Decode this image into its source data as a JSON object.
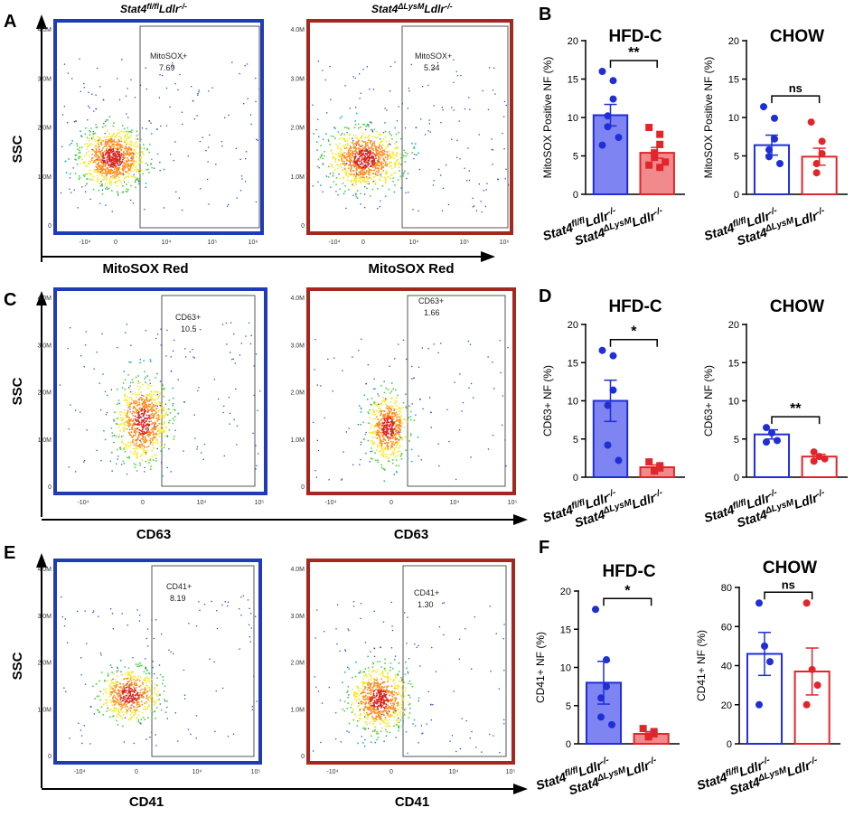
{
  "figure": {
    "panel_letters": {
      "A": "A",
      "B": "B",
      "C": "C",
      "D": "D",
      "E": "E",
      "F": "F"
    },
    "genotype_titles": {
      "flox_base": "Stat4",
      "flox_sup": "fl/fl",
      "flox_rest": "Ldlr",
      "flox_sup2": "-/-",
      "ko_base": "Stat4",
      "ko_sup": "ΔLysM",
      "ko_rest": "Ldlr",
      "ko_sup2": "-/-"
    },
    "ssc_label": "SSC",
    "flow_yticks": [
      "4.0M",
      "3.0M",
      "2.0M",
      "1.0M",
      "0"
    ],
    "flow_xticks": [
      "-10⁴",
      "0",
      "10⁴",
      "10⁵",
      "10⁶"
    ],
    "flow_xticks_short": [
      "-10⁴",
      "0",
      "10⁴",
      "10⁵"
    ],
    "rows": [
      {
        "xlabel": "MitoSOX Red",
        "gate_label": "MitoSOX+",
        "values": [
          "7.69",
          "5.34"
        ]
      },
      {
        "xlabel": "CD63",
        "gate_label": "CD63+",
        "values": [
          "10.5",
          "1.66"
        ]
      },
      {
        "xlabel": "CD41",
        "gate_label": "CD41+",
        "values": [
          "8.19",
          "1.30"
        ]
      }
    ],
    "colors": {
      "flox": "#1f2fd6",
      "ko": "#e0262b",
      "flox_fill": "#7e84f2",
      "ko_fill": "#f08a8c",
      "flox_frame": "#1f3bb5",
      "ko_frame": "#a5281e"
    }
  },
  "chart_data": [
    {
      "panel": "B",
      "type": "bar",
      "title": "HFD-C",
      "ylabel": "MitoSOX Positive NF (%)",
      "ylim": [
        0,
        20
      ],
      "yticks": [
        0,
        5,
        10,
        15,
        20
      ],
      "filled": true,
      "categories": [
        "Stat4 fl/fl Ldlr-/-",
        "Stat4 ΔLysM Ldlr-/-"
      ],
      "series": [
        {
          "name": "Stat4fl/fl Ldlr-/-",
          "mean": 10.3,
          "sem": 1.4,
          "points": [
            16.0,
            14.8,
            12.4,
            10.2,
            8.8,
            7.4,
            6.4
          ]
        },
        {
          "name": "Stat4ΔLysM Ldlr-/-",
          "mean": 5.4,
          "sem": 0.7,
          "points": [
            8.7,
            7.8,
            6.5,
            5.4,
            4.8,
            4.2,
            3.8,
            3.5
          ]
        }
      ],
      "significance": "**"
    },
    {
      "panel": "B2",
      "type": "bar",
      "title": "CHOW",
      "ylabel": "MitoSOX Positive NF (%)",
      "ylim": [
        0,
        20
      ],
      "yticks": [
        0,
        5,
        10,
        15,
        20
      ],
      "filled": false,
      "categories": [
        "Stat4 fl/fl Ldlr-/-",
        "Stat4 ΔLysM Ldlr-/-"
      ],
      "series": [
        {
          "name": "Stat4fl/fl Ldlr-/-",
          "mean": 6.4,
          "sem": 1.3,
          "points": [
            11.4,
            9.9,
            7.2,
            5.8,
            4.9,
            4.0
          ]
        },
        {
          "name": "Stat4ΔLysM Ldlr-/-",
          "mean": 4.9,
          "sem": 1.1,
          "points": [
            9.4,
            6.9,
            5.3,
            4.0,
            2.8
          ]
        }
      ],
      "significance": "ns"
    },
    {
      "panel": "D",
      "type": "bar",
      "title": "HFD-C",
      "ylabel": "CD63+ NF (%)",
      "ylim": [
        0,
        20
      ],
      "yticks": [
        0,
        5,
        10,
        15,
        20
      ],
      "filled": true,
      "categories": [
        "Stat4 fl/fl Ldlr-/-",
        "Stat4 ΔLysM Ldlr-/-"
      ],
      "series": [
        {
          "name": "Stat4fl/fl Ldlr-/-",
          "mean": 10.0,
          "sem": 2.7,
          "points": [
            16.6,
            15.9,
            11.4,
            9.4,
            4.2,
            2.2
          ]
        },
        {
          "name": "Stat4ΔLysM Ldlr-/-",
          "mean": 1.3,
          "sem": 0.3,
          "points": [
            2.0,
            1.5,
            1.2,
            0.8,
            0.9
          ]
        }
      ],
      "significance": "*"
    },
    {
      "panel": "D2",
      "type": "bar",
      "title": "CHOW",
      "ylabel": "CD63+ NF (%)",
      "ylim": [
        0,
        20
      ],
      "yticks": [
        0,
        5,
        10,
        15,
        20
      ],
      "filled": false,
      "categories": [
        "Stat4 fl/fl Ldlr-/-",
        "Stat4 ΔLysM Ldlr-/-"
      ],
      "series": [
        {
          "name": "Stat4fl/fl Ldlr-/-",
          "mean": 5.6,
          "sem": 0.6,
          "points": [
            6.5,
            5.8,
            4.8,
            4.6
          ]
        },
        {
          "name": "Stat4ΔLysM Ldlr-/-",
          "mean": 2.7,
          "sem": 0.3,
          "points": [
            3.3,
            2.7,
            2.4,
            2.1
          ]
        }
      ],
      "significance": "**"
    },
    {
      "panel": "F",
      "type": "bar",
      "title": "HFD-C",
      "ylabel": "CD41+ NF (%)",
      "ylim": [
        0,
        20
      ],
      "yticks": [
        0,
        5,
        10,
        15,
        20
      ],
      "filled": true,
      "categories": [
        "Stat4 fl/fl Ldlr-/-",
        "Stat4 ΔLysM Ldlr-/-"
      ],
      "series": [
        {
          "name": "Stat4fl/fl Ldlr-/-",
          "mean": 8.0,
          "sem": 2.8,
          "points": [
            17.6,
            11.0,
            7.5,
            6.0,
            3.5,
            2.5
          ]
        },
        {
          "name": "Stat4ΔLysM Ldlr-/-",
          "mean": 1.3,
          "sem": 0.3,
          "points": [
            2.0,
            1.6,
            1.3,
            1.0,
            0.9
          ]
        }
      ],
      "significance": "*"
    },
    {
      "panel": "F2",
      "type": "bar",
      "title": "CHOW",
      "ylabel": "CD41+ NF (%)",
      "ylim": [
        0,
        80
      ],
      "yticks": [
        0,
        20,
        40,
        60,
        80
      ],
      "filled": false,
      "categories": [
        "Stat4 fl/fl Ldlr-/-",
        "Stat4 ΔLysM Ldlr-/-"
      ],
      "series": [
        {
          "name": "Stat4fl/fl Ldlr-/-",
          "mean": 46,
          "sem": 11,
          "points": [
            72,
            50,
            42,
            20
          ]
        },
        {
          "name": "Stat4ΔLysM Ldlr-/-",
          "mean": 37,
          "sem": 12,
          "points": [
            72,
            38,
            30,
            20
          ]
        }
      ],
      "significance": "ns"
    }
  ]
}
